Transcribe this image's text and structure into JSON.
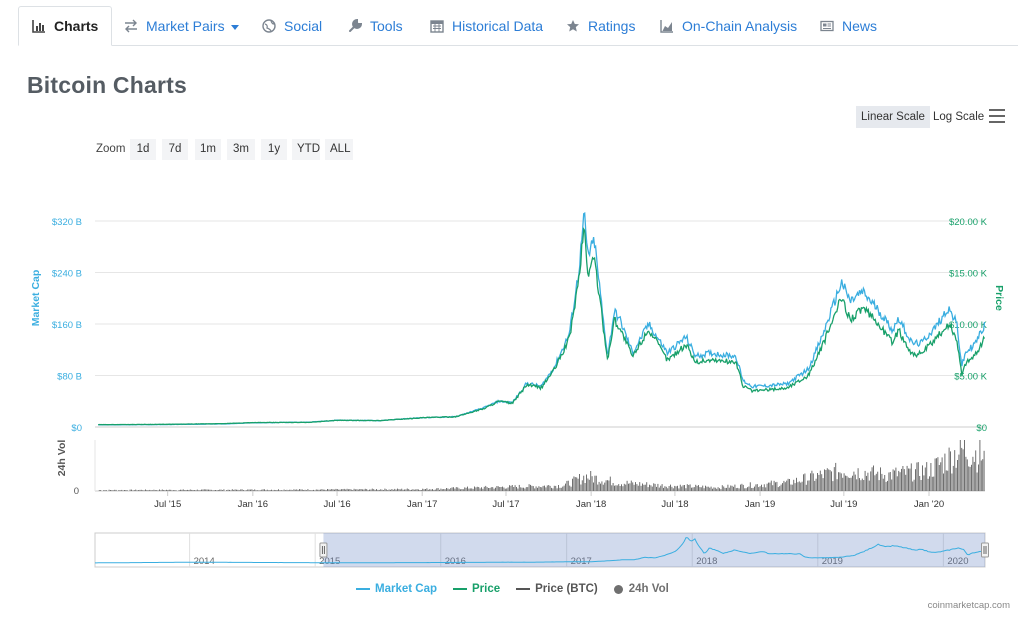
{
  "tabs": [
    {
      "label": "Charts",
      "icon": "bar-chart-icon",
      "active": true
    },
    {
      "label": "Market Pairs",
      "icon": "swap-arrows-icon",
      "dropdown": true
    },
    {
      "label": "Social",
      "icon": "globe-icon"
    },
    {
      "label": "Tools",
      "icon": "wrench-icon"
    },
    {
      "label": "Historical Data",
      "icon": "calendar-icon"
    },
    {
      "label": "Ratings",
      "icon": "star-icon"
    },
    {
      "label": "On-Chain Analysis",
      "icon": "area-chart-icon"
    },
    {
      "label": "News",
      "icon": "newspaper-icon"
    }
  ],
  "page_title": "Bitcoin Charts",
  "scale": {
    "linear": "Linear Scale",
    "log": "Log Scale",
    "selected": "linear"
  },
  "zoom": {
    "label": "Zoom",
    "options": [
      "1d",
      "7d",
      "1m",
      "3m",
      "1y",
      "YTD",
      "ALL"
    ]
  },
  "credit": "coinmarketcap.com",
  "colors": {
    "market_cap": "#3aaee0",
    "price": "#18a06a",
    "price_btc": "#555555",
    "volume": "#6f6f6f",
    "accent": "#2c7dd6"
  },
  "chart_data": {
    "type": "line",
    "x_ticks": [
      "Jul '15",
      "Jan '16",
      "Jul '16",
      "Jan '17",
      "Jul '17",
      "Jan '18",
      "Jul '18",
      "Jan '19",
      "Jul '19",
      "Jan '20"
    ],
    "left_axis": {
      "label": "Market Cap",
      "ticks": [
        "$0",
        "$80 B",
        "$160 B",
        "$240 B",
        "$320 B"
      ],
      "range": [
        0,
        320
      ]
    },
    "right_axis": {
      "label": "Price",
      "ticks": [
        "$0",
        "$5.00 K",
        "$10.00 K",
        "$15.00 K",
        "$20.00 K"
      ],
      "range": [
        0,
        20000
      ]
    },
    "volume_axis": {
      "label": "24h Vol",
      "ticks": [
        "0"
      ]
    },
    "navigator_ticks": [
      "2014",
      "2015",
      "2016",
      "2017",
      "2018",
      "2019",
      "2020"
    ],
    "legend": [
      "Market Cap",
      "Price",
      "Price (BTC)",
      "24h Vol"
    ],
    "series": [
      {
        "name": "Market Cap",
        "unit": "USD billions",
        "points": [
          [
            "2015-02-01",
            3.4
          ],
          [
            "2015-07-01",
            3.8
          ],
          [
            "2015-11-01",
            4.8
          ],
          [
            "2016-01-01",
            6.5
          ],
          [
            "2016-05-01",
            7.5
          ],
          [
            "2016-07-01",
            10.5
          ],
          [
            "2016-10-01",
            10.0
          ],
          [
            "2017-01-01",
            14.5
          ],
          [
            "2017-03-15",
            16.0
          ],
          [
            "2017-05-15",
            30.0
          ],
          [
            "2017-06-15",
            40.0
          ],
          [
            "2017-07-15",
            38.0
          ],
          [
            "2017-08-15",
            68.0
          ],
          [
            "2017-09-15",
            63.0
          ],
          [
            "2017-10-15",
            95.0
          ],
          [
            "2017-11-15",
            145.0
          ],
          [
            "2017-12-05",
            240.0
          ],
          [
            "2017-12-17",
            330.0
          ],
          [
            "2017-12-25",
            265.0
          ],
          [
            "2018-01-08",
            290.0
          ],
          [
            "2018-01-25",
            180.0
          ],
          [
            "2018-02-06",
            110.0
          ],
          [
            "2018-02-20",
            180.0
          ],
          [
            "2018-03-05",
            165.0
          ],
          [
            "2018-04-01",
            115.0
          ],
          [
            "2018-05-05",
            160.0
          ],
          [
            "2018-06-15",
            115.0
          ],
          [
            "2018-07-25",
            140.0
          ],
          [
            "2018-08-15",
            110.0
          ],
          [
            "2018-09-15",
            115.0
          ],
          [
            "2018-10-15",
            112.0
          ],
          [
            "2018-11-10",
            110.0
          ],
          [
            "2018-11-25",
            72.0
          ],
          [
            "2018-12-15",
            63.0
          ],
          [
            "2019-01-15",
            64.0
          ],
          [
            "2019-03-01",
            67.0
          ],
          [
            "2019-04-15",
            90.0
          ],
          [
            "2019-05-15",
            140.0
          ],
          [
            "2019-06-26",
            225.0
          ],
          [
            "2019-07-15",
            195.0
          ],
          [
            "2019-08-10",
            210.0
          ],
          [
            "2019-09-10",
            185.0
          ],
          [
            "2019-10-15",
            150.0
          ],
          [
            "2019-10-27",
            170.0
          ],
          [
            "2019-11-25",
            130.0
          ],
          [
            "2019-12-15",
            130.0
          ],
          [
            "2020-01-15",
            155.0
          ],
          [
            "2020-02-12",
            185.0
          ],
          [
            "2020-03-01",
            160.0
          ],
          [
            "2020-03-12",
            95.0
          ],
          [
            "2020-03-20",
            115.0
          ],
          [
            "2020-04-10",
            130.0
          ],
          [
            "2020-04-30",
            158.0
          ]
        ]
      },
      {
        "name": "Price",
        "unit": "USD",
        "points": [
          [
            "2015-02-01",
            230
          ],
          [
            "2015-07-01",
            260
          ],
          [
            "2015-11-01",
            330
          ],
          [
            "2016-01-01",
            430
          ],
          [
            "2016-05-01",
            450
          ],
          [
            "2016-07-01",
            650
          ],
          [
            "2016-10-01",
            620
          ],
          [
            "2017-01-01",
            900
          ],
          [
            "2017-03-15",
            1000
          ],
          [
            "2017-05-15",
            1800
          ],
          [
            "2017-06-15",
            2500
          ],
          [
            "2017-07-15",
            2300
          ],
          [
            "2017-08-15",
            4100
          ],
          [
            "2017-09-15",
            3800
          ],
          [
            "2017-10-15",
            5700
          ],
          [
            "2017-11-15",
            8600
          ],
          [
            "2017-12-05",
            14200
          ],
          [
            "2017-12-17",
            19500
          ],
          [
            "2017-12-25",
            14800
          ],
          [
            "2018-01-08",
            16500
          ],
          [
            "2018-01-25",
            10500
          ],
          [
            "2018-02-06",
            6500
          ],
          [
            "2018-02-20",
            10500
          ],
          [
            "2018-03-05",
            9500
          ],
          [
            "2018-04-01",
            6800
          ],
          [
            "2018-05-05",
            9500
          ],
          [
            "2018-06-15",
            6500
          ],
          [
            "2018-07-25",
            8000
          ],
          [
            "2018-08-15",
            6300
          ],
          [
            "2018-09-15",
            6500
          ],
          [
            "2018-10-15",
            6400
          ],
          [
            "2018-11-10",
            6300
          ],
          [
            "2018-11-25",
            4000
          ],
          [
            "2018-12-15",
            3500
          ],
          [
            "2019-01-15",
            3600
          ],
          [
            "2019-03-01",
            3800
          ],
          [
            "2019-04-15",
            5000
          ],
          [
            "2019-05-15",
            7800
          ],
          [
            "2019-06-26",
            12500
          ],
          [
            "2019-07-15",
            10500
          ],
          [
            "2019-08-10",
            11500
          ],
          [
            "2019-09-10",
            10200
          ],
          [
            "2019-10-15",
            8200
          ],
          [
            "2019-10-27",
            9400
          ],
          [
            "2019-11-25",
            7100
          ],
          [
            "2019-12-15",
            7100
          ],
          [
            "2020-01-15",
            8500
          ],
          [
            "2020-02-12",
            10000
          ],
          [
            "2020-03-01",
            8600
          ],
          [
            "2020-03-12",
            5000
          ],
          [
            "2020-03-20",
            6200
          ],
          [
            "2020-04-10",
            7000
          ],
          [
            "2020-04-30",
            8600
          ]
        ]
      },
      {
        "name": "24h Vol",
        "unit": "relative",
        "points": [
          [
            "2015-02-01",
            0.02
          ],
          [
            "2016-06-01",
            0.03
          ],
          [
            "2017-01-01",
            0.04
          ],
          [
            "2017-06-01",
            0.08
          ],
          [
            "2017-11-01",
            0.12
          ],
          [
            "2017-12-20",
            0.32
          ],
          [
            "2018-03-01",
            0.18
          ],
          [
            "2018-06-01",
            0.12
          ],
          [
            "2018-10-01",
            0.08
          ],
          [
            "2018-12-01",
            0.12
          ],
          [
            "2019-03-01",
            0.18
          ],
          [
            "2019-05-15",
            0.35
          ],
          [
            "2019-07-01",
            0.45
          ],
          [
            "2019-10-01",
            0.35
          ],
          [
            "2020-01-01",
            0.45
          ],
          [
            "2020-03-12",
            0.9
          ],
          [
            "2020-04-30",
            0.75
          ]
        ]
      }
    ],
    "grid": true,
    "legend_position": "bottom"
  }
}
